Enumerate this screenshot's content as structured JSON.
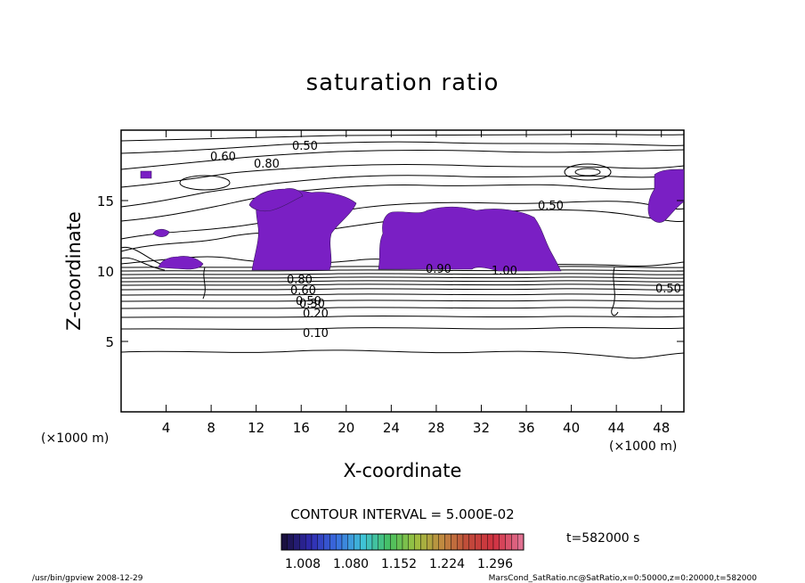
{
  "chart_data": {
    "type": "heatmap",
    "title": "saturation ratio",
    "xlabel": "X-coordinate",
    "ylabel": "Z-coordinate",
    "x_unit": "(×1000 m)",
    "y_unit": "(×1000 m)",
    "xlim": [
      0,
      50
    ],
    "ylim": [
      0,
      20
    ],
    "x_ticks": [
      4,
      8,
      12,
      16,
      20,
      24,
      28,
      32,
      36,
      40,
      44,
      48
    ],
    "y_ticks": [
      5,
      10,
      15
    ],
    "contour_interval_label": "CONTOUR INTERVAL = 5.000E-02",
    "time_label": "t=582000 s",
    "contour_labels": [
      "0.10",
      "0.20",
      "0.30",
      "0.50",
      "0.60",
      "0.80",
      "0.90",
      "1.00"
    ],
    "colorbar": {
      "ticks": [
        "1.008",
        "1.080",
        "1.152",
        "1.224",
        "1.296"
      ],
      "colors": [
        "#1a1040",
        "#2f2ab0",
        "#3a6ee0",
        "#3fc3d6",
        "#46c060",
        "#9ec040",
        "#c08a40",
        "#c04a3a",
        "#d03040",
        "#e07090"
      ]
    },
    "shaded_regions": [
      {
        "name": "supersaturated",
        "color": "#7a1fc4",
        "x": [
          [
            11.8,
            21.0
          ],
          [
            22.5,
            38.5
          ],
          [
            13.0,
            16.5
          ],
          [
            46.5,
            49.8
          ],
          [
            3.0,
            7.5
          ],
          [
            2.5,
            4.5
          ]
        ],
        "z": [
          [
            10.0,
            15.6
          ],
          [
            10.0,
            14.9
          ],
          [
            14.5,
            15.8
          ],
          [
            13.0,
            17.2
          ],
          [
            10.0,
            11.6
          ],
          [
            12.3,
            13.2
          ]
        ]
      }
    ]
  },
  "footer": {
    "left": "/usr/bin/gpview   2008-12-29",
    "right": "MarsCond_SatRatio.nc@SatRatio,x=0:50000,z=0:20000,t=582000"
  }
}
